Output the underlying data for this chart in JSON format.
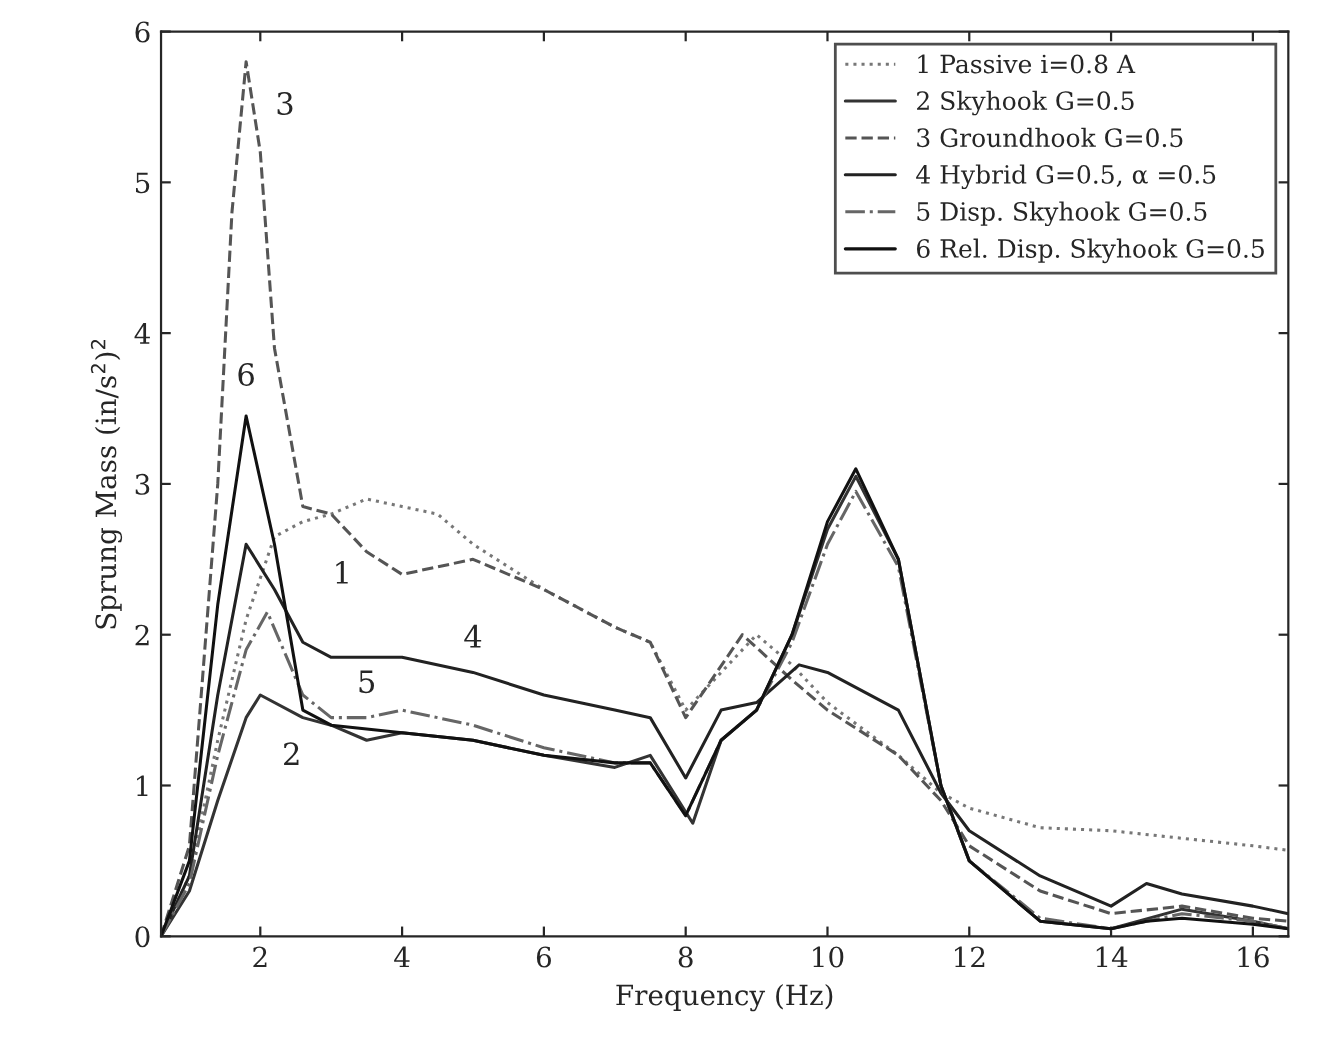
{
  "chart_data": {
    "type": "line",
    "xlabel": "Frequency (Hz)",
    "ylabel": "Sprung Mass (in/s$^{2}$)$^{2}$",
    "xlim": [
      0.6,
      16.5
    ],
    "ylim": [
      0,
      6
    ],
    "xticks": [
      2,
      4,
      6,
      8,
      10,
      12,
      14,
      16
    ],
    "yticks": [
      0,
      1,
      2,
      3,
      4,
      5,
      6
    ],
    "grid": false,
    "legend": "top right",
    "series": [
      {
        "name": "1 Passive i=0.8 A",
        "color": "#777777",
        "line_style": "dotted",
        "x": [
          0.6,
          1,
          1.4,
          1.8,
          2.2,
          2.6,
          3,
          3.5,
          4,
          4.5,
          5,
          6,
          7,
          7.5,
          8,
          8.5,
          9,
          9.5,
          10,
          11,
          11.6,
          12,
          13,
          14,
          15,
          16,
          16.5
        ],
        "values": [
          0,
          0.4,
          1.3,
          2.1,
          2.65,
          2.75,
          2.8,
          2.9,
          2.85,
          2.8,
          2.6,
          2.3,
          2.05,
          1.95,
          1.5,
          1.75,
          2.0,
          1.8,
          1.55,
          1.2,
          0.95,
          0.85,
          0.72,
          0.7,
          0.65,
          0.6,
          0.57
        ]
      },
      {
        "name": "2 Skyhook G=0.5",
        "color": "#333333",
        "line_style": "solid",
        "x": [
          0.6,
          1,
          1.4,
          1.8,
          2,
          2.6,
          3,
          3.5,
          4,
          5,
          6,
          7,
          7.5,
          8.1,
          8.5,
          9,
          9.5,
          10,
          10.4,
          11,
          11.6,
          12,
          13,
          14,
          15,
          16,
          16.5
        ],
        "values": [
          0,
          0.3,
          0.9,
          1.45,
          1.6,
          1.45,
          1.4,
          1.3,
          1.35,
          1.3,
          1.2,
          1.12,
          1.2,
          0.75,
          1.3,
          1.5,
          2.0,
          2.7,
          3.05,
          2.5,
          1.0,
          0.5,
          0.1,
          0.05,
          0.18,
          0.1,
          0.05
        ]
      },
      {
        "name": "3 Groundhook G=0.5",
        "color": "#555555",
        "line_style": "dashed",
        "x": [
          0.6,
          1,
          1.4,
          1.6,
          1.8,
          2,
          2.2,
          2.6,
          3,
          3.5,
          4,
          5,
          6,
          7,
          7.5,
          8,
          8.8,
          9.5,
          10,
          11,
          11.6,
          12,
          13,
          14,
          15,
          16,
          16.5
        ],
        "values": [
          0,
          0.6,
          3.0,
          4.8,
          5.8,
          5.2,
          3.9,
          2.85,
          2.8,
          2.55,
          2.4,
          2.5,
          2.3,
          2.05,
          1.95,
          1.45,
          2.0,
          1.7,
          1.5,
          1.2,
          0.9,
          0.6,
          0.3,
          0.15,
          0.2,
          0.12,
          0.1
        ]
      },
      {
        "name": "4 Hybrid G=0.5, α =0.5",
        "color": "#222222",
        "line_style": "solid",
        "x": [
          0.6,
          1,
          1.4,
          1.8,
          2.2,
          2.6,
          3,
          4,
          5,
          6,
          7,
          7.5,
          8,
          8.5,
          9,
          9.6,
          10,
          11,
          11.6,
          12,
          13,
          14,
          14.5,
          15,
          16,
          16.5
        ],
        "values": [
          0,
          0.4,
          1.6,
          2.6,
          2.3,
          1.95,
          1.85,
          1.85,
          1.75,
          1.6,
          1.5,
          1.45,
          1.05,
          1.5,
          1.55,
          1.8,
          1.75,
          1.5,
          0.95,
          0.7,
          0.4,
          0.2,
          0.35,
          0.28,
          0.2,
          0.15
        ]
      },
      {
        "name": "5 Disp. Skyhook G=0.5",
        "color": "#666666",
        "line_style": "dashdot",
        "x": [
          0.6,
          1,
          1.4,
          1.8,
          2.1,
          2.6,
          3,
          3.5,
          4,
          5,
          6,
          7,
          7.5,
          8,
          8.5,
          9,
          9.5,
          10,
          10.4,
          11,
          11.6,
          12,
          13,
          14,
          15,
          16,
          16.5
        ],
        "values": [
          0,
          0.35,
          1.2,
          1.9,
          2.15,
          1.6,
          1.45,
          1.45,
          1.5,
          1.4,
          1.25,
          1.15,
          1.15,
          0.8,
          1.3,
          1.5,
          1.95,
          2.6,
          2.95,
          2.45,
          1.0,
          0.5,
          0.12,
          0.05,
          0.15,
          0.1,
          0.05
        ]
      },
      {
        "name": "6 Rel. Disp. Skyhook G=0.5",
        "color": "#111111",
        "line_style": "solid",
        "x": [
          0.6,
          1,
          1.4,
          1.8,
          2.2,
          2.6,
          3,
          4,
          5,
          6,
          7,
          7.5,
          8,
          8.5,
          9,
          9.5,
          10,
          10.4,
          11,
          11.6,
          12,
          13,
          14,
          14.5,
          15,
          16,
          16.5
        ],
        "values": [
          0,
          0.5,
          2.2,
          3.45,
          2.6,
          1.5,
          1.4,
          1.35,
          1.3,
          1.2,
          1.15,
          1.15,
          0.8,
          1.3,
          1.5,
          2.0,
          2.75,
          3.1,
          2.5,
          1.0,
          0.5,
          0.1,
          0.05,
          0.1,
          0.12,
          0.08,
          0.05
        ]
      }
    ],
    "annotations": [
      "3",
      "6",
      "1",
      "4",
      "5",
      "2"
    ]
  }
}
